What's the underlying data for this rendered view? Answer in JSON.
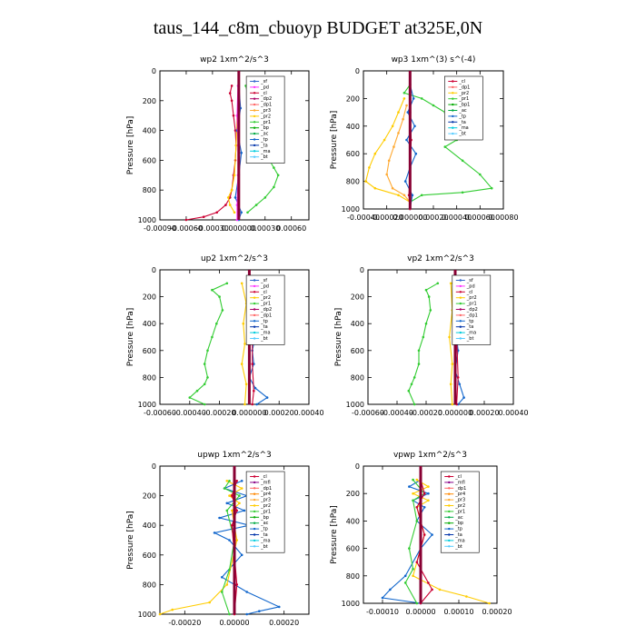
{
  "title": "taus_144_c8m_cbuoyp  BUDGET at325E,0N",
  "colors": {
    "sf": "#3366cc",
    "pd": "#ff33ff",
    "cl": "#cc0033",
    "dp2": "#aa0066",
    "dp1": "#ff6666",
    "pr3": "#ffaa33",
    "pr2": "#ffcc00",
    "pr1": "#33cc33",
    "bp": "#00aa00",
    "ac": "#00aa44",
    "tp": "#1166cc",
    "ta": "#0033aa",
    "ma": "#00ccdd",
    "bt": "#55ccff",
    "mfl": "#880088",
    "pr4": "#ff8800",
    "total": "#880033"
  },
  "chart_data": [
    {
      "type": "line",
      "title": "wp2   1xm^2/s^3",
      "ylabel": "Pressure  [hPa]",
      "ylim": [
        1000,
        0
      ],
      "yticks": [
        0,
        200,
        400,
        600,
        800,
        1000
      ],
      "xlim": [
        -0.0009,
        0.0008
      ],
      "xticks": [
        {
          "v": -0.0009,
          "label": "-0.00090"
        },
        {
          "v": -0.0006,
          "label": "-0.00060"
        },
        {
          "v": -0.0003,
          "label": "-0.00030"
        },
        {
          "v": 0.0,
          "label": "0.000000"
        },
        {
          "v": 0.0003,
          "label": "0.00030"
        },
        {
          "v": 0.0006,
          "label": "0.00060"
        }
      ],
      "legend": [
        "_sf",
        "_pd",
        "_cl",
        "_dp2",
        "_dp1",
        "_pr3",
        "_pr2",
        "_pr1",
        "_bp",
        "_ac",
        "_tp",
        "_ta",
        "_ma",
        "_bt"
      ],
      "series": [
        {
          "key": "pr1",
          "x": [
            8e-05,
            0.00012,
            0.00018,
            0.0002,
            0.00015,
            0.0002,
            0.0003,
            0.00035,
            0.0004,
            0.00045,
            0.0004,
            0.0003,
            0.0002,
            0.0001
          ],
          "y": [
            100,
            200,
            300,
            400,
            450,
            500,
            550,
            600,
            650,
            700,
            780,
            850,
            900,
            950
          ]
        },
        {
          "key": "cl",
          "x": [
            -8e-05,
            -0.0001,
            -8e-05,
            -6e-05,
            -4e-05,
            -3e-05,
            -4e-05,
            -6e-05,
            -8e-05,
            -0.0001,
            -0.00015,
            -0.00025,
            -0.0004,
            -0.0006
          ],
          "y": [
            100,
            150,
            200,
            300,
            400,
            500,
            600,
            700,
            800,
            850,
            900,
            950,
            980,
            1000
          ]
        },
        {
          "key": "pr2",
          "x": [
            0.0,
            -2e-05,
            -3e-05,
            -5e-05,
            -8e-05,
            -0.00012,
            -0.0001,
            -5e-05
          ],
          "y": [
            150,
            300,
            500,
            700,
            800,
            850,
            900,
            950
          ]
        },
        {
          "key": "tp",
          "x": [
            0.0,
            2e-05,
            -2e-05,
            3e-05,
            0.0,
            -4e-05,
            3e-05,
            0.0
          ],
          "y": [
            100,
            250,
            400,
            550,
            700,
            850,
            950,
            1000
          ]
        },
        {
          "key": "pd",
          "x": [
            -1e-05,
            -2e-05,
            -1e-05,
            -1e-05,
            -2e-05,
            -2e-05
          ],
          "y": [
            100,
            300,
            500,
            700,
            900,
            1000
          ]
        }
      ]
    },
    {
      "type": "line",
      "title": "wp3   1xm^(3) s^(-4)",
      "ylabel": "Pressure  [hPa]",
      "ylim": [
        1000,
        0
      ],
      "yticks": [
        0,
        200,
        400,
        600,
        800,
        1000
      ],
      "xlim": [
        -0.0004,
        0.0008
      ],
      "xticks": [
        {
          "v": -0.0004,
          "label": "-0.00040"
        },
        {
          "v": -0.0002,
          "label": "-0.00020"
        },
        {
          "v": 0.0,
          "label": "0.000000"
        },
        {
          "v": 0.0002,
          "label": "0.00020"
        },
        {
          "v": 0.0004,
          "label": "0.00040"
        },
        {
          "v": 0.0006,
          "label": "0.00060"
        },
        {
          "v": 0.0008,
          "label": "0.00080"
        }
      ],
      "legend": [
        "_cl",
        "_dp1",
        "_pr2",
        "_pr1",
        "_bp1",
        "_ac",
        "_tp",
        "_ta",
        "_ma",
        "_bt"
      ],
      "series": [
        {
          "key": "pr1",
          "x": [
            0.0,
            -5e-05,
            0.0001,
            0.0002,
            0.0003,
            0.00045,
            0.0005,
            0.0004,
            0.0003,
            0.00045,
            0.0006,
            0.0007,
            0.00045,
            0.0001,
            0.0
          ],
          "y": [
            100,
            160,
            200,
            250,
            300,
            400,
            450,
            500,
            550,
            650,
            750,
            850,
            880,
            900,
            950
          ]
        },
        {
          "key": "pr2",
          "x": [
            -5e-05,
            -0.0001,
            -0.00015,
            -0.00022,
            -0.0003,
            -0.00035,
            -0.00038,
            -0.0003,
            -0.0001,
            0.0
          ],
          "y": [
            200,
            300,
            400,
            500,
            600,
            700,
            800,
            850,
            900,
            950
          ]
        },
        {
          "key": "pr3",
          "x": [
            -3e-05,
            -6e-05,
            -0.0001,
            -0.00014,
            -0.00018,
            -0.0002,
            -0.00015,
            -5e-05,
            0.0
          ],
          "y": [
            250,
            350,
            450,
            550,
            650,
            750,
            850,
            900,
            950
          ]
        },
        {
          "key": "tp",
          "x": [
            0.0,
            3e-05,
            -2e-05,
            4e-05,
            -3e-05,
            5e-05,
            0.0,
            -4e-05,
            2e-05,
            0.0
          ],
          "y": [
            100,
            200,
            300,
            400,
            500,
            600,
            700,
            800,
            900,
            1000
          ]
        },
        {
          "key": "cl",
          "x": [
            0.0,
            0.0,
            1e-05,
            0.0,
            -1e-05,
            0.0
          ],
          "y": [
            100,
            300,
            500,
            700,
            900,
            1000
          ]
        }
      ]
    },
    {
      "type": "line",
      "title": "up2   1xm^2/s^3",
      "ylabel": "Pressure  [hPa]",
      "ylim": [
        1000,
        0
      ],
      "yticks": [
        0,
        200,
        400,
        600,
        800,
        1000
      ],
      "xlim": [
        -0.0006,
        0.0004
      ],
      "xticks": [
        {
          "v": -0.0006,
          "label": "-0.00060"
        },
        {
          "v": -0.0004,
          "label": "-0.00040"
        },
        {
          "v": -0.0002,
          "label": "-0.00020"
        },
        {
          "v": 0.0,
          "label": "0.000000"
        },
        {
          "v": 0.0002,
          "label": "0.00020"
        },
        {
          "v": 0.0004,
          "label": "0.00040"
        }
      ],
      "legend": [
        "_sf",
        "_pd",
        "_cl",
        "_pr2",
        "_pr1",
        "_dp2",
        "_dp1",
        "_tp",
        "_ta",
        "_ma",
        "_bt"
      ],
      "series": [
        {
          "key": "pr1",
          "x": [
            -0.00015,
            -0.00025,
            -0.0002,
            -0.00018,
            -0.00022,
            -0.00025,
            -0.00028,
            -0.0003,
            -0.00028,
            -0.0003,
            -0.00035,
            -0.0004,
            -0.0003
          ],
          "y": [
            100,
            150,
            200,
            300,
            400,
            500,
            600,
            700,
            800,
            850,
            900,
            950,
            1000
          ]
        },
        {
          "key": "pr2",
          "x": [
            -5e-05,
            -2e-05,
            -4e-05,
            -3e-05,
            -5e-05,
            -2e-05,
            -3e-05
          ],
          "y": [
            100,
            250,
            400,
            550,
            700,
            850,
            1000
          ]
        },
        {
          "key": "tp",
          "x": [
            5e-05,
            0.00012,
            5e-05,
            0.0001,
            3e-05,
            4e-05,
            2e-05,
            3e-05,
            0.0,
            4e-05,
            0.00012,
            5e-05
          ],
          "y": [
            100,
            150,
            200,
            300,
            400,
            500,
            600,
            700,
            800,
            880,
            950,
            1000
          ]
        },
        {
          "key": "cl",
          "x": [
            1e-05,
            1e-05,
            2e-05,
            2e-05,
            3e-05,
            2e-05
          ],
          "y": [
            100,
            300,
            500,
            700,
            900,
            1000
          ]
        }
      ]
    },
    {
      "type": "line",
      "title": "vp2   1xm^2/s^3",
      "ylabel": "Pressure  [hPa]",
      "ylim": [
        1000,
        0
      ],
      "yticks": [
        0,
        200,
        400,
        600,
        800,
        1000
      ],
      "xlim": [
        -0.0006,
        0.0004
      ],
      "xticks": [
        {
          "v": -0.0006,
          "label": "-0.00060"
        },
        {
          "v": -0.0004,
          "label": "-0.00040"
        },
        {
          "v": -0.0002,
          "label": "-0.00020"
        },
        {
          "v": 0.0,
          "label": "0.000000"
        },
        {
          "v": 0.0002,
          "label": "0.00020"
        },
        {
          "v": 0.0004,
          "label": "0.00040"
        }
      ],
      "legend": [
        "_sf",
        "_pd",
        "_cl",
        "_pr2",
        "_pr1",
        "_dp2",
        "_dp1",
        "_tp",
        "_ta",
        "_ma",
        "_bt"
      ],
      "series": [
        {
          "key": "pr1",
          "x": [
            -0.00012,
            -0.0002,
            -0.00018,
            -0.00017,
            -0.0002,
            -0.00022,
            -0.00025,
            -0.00025,
            -0.00028,
            -0.0003,
            -0.00032,
            -0.00028
          ],
          "y": [
            100,
            150,
            200,
            300,
            400,
            500,
            600,
            700,
            800,
            850,
            900,
            1000
          ]
        },
        {
          "key": "pr2",
          "x": [
            -3e-05,
            -2e-05,
            -4e-05,
            -2e-05,
            -3e-05,
            -2e-05
          ],
          "y": [
            100,
            300,
            500,
            700,
            850,
            1000
          ]
        },
        {
          "key": "tp",
          "x": [
            2e-05,
            4e-05,
            2e-05,
            3e-05,
            1e-05,
            2e-05,
            0.0,
            3e-05,
            6e-05,
            2e-05
          ],
          "y": [
            100,
            200,
            300,
            400,
            500,
            600,
            750,
            850,
            950,
            1000
          ]
        },
        {
          "key": "cl",
          "x": [
            1e-05,
            1e-05,
            1e-05,
            2e-05,
            1e-05
          ],
          "y": [
            100,
            300,
            500,
            800,
            1000
          ]
        }
      ]
    },
    {
      "type": "line",
      "title": "upwp   1xm^2/s^3",
      "ylabel": "Pressure  [hPa]",
      "ylim": [
        1000,
        0
      ],
      "yticks": [
        0,
        200,
        400,
        600,
        800,
        1000
      ],
      "xlim": [
        -0.0003,
        0.0003
      ],
      "xticks": [
        {
          "v": -0.0002,
          "label": "-0.00020"
        },
        {
          "v": 0.0,
          "label": "0.00000"
        },
        {
          "v": 0.0002,
          "label": "0.00020"
        }
      ],
      "legend": [
        "_cl",
        "_mfl",
        "_dp1",
        "_pr4",
        "_pr3",
        "_pr2",
        "_pr1",
        "_bp",
        "_ac",
        "_tp",
        "_ta",
        "_ma",
        "_bt"
      ],
      "series": [
        {
          "key": "tp",
          "x": [
            3e-05,
            -4e-05,
            5e-05,
            -3e-05,
            4e-05,
            -6e-05,
            6e-05,
            -8e-05,
            -2e-05,
            3e-05,
            -5e-05,
            5e-05,
            0.00018,
            0.0001,
            5e-05
          ],
          "y": [
            100,
            150,
            200,
            250,
            300,
            350,
            400,
            450,
            500,
            600,
            750,
            850,
            950,
            980,
            1000
          ]
        },
        {
          "key": "pr2",
          "x": [
            -3e-05,
            3e-05,
            -2e-05,
            2e-05,
            -1e-05,
            1e-05,
            -3e-05,
            -0.0001,
            -0.00025,
            -0.0003
          ],
          "y": [
            100,
            150,
            200,
            250,
            300,
            500,
            800,
            920,
            970,
            1000
          ]
        },
        {
          "key": "pr1",
          "x": [
            -2e-05,
            -4e-05,
            2e-05,
            -3e-05,
            0.0,
            -2e-05,
            -5e-05,
            -2e-05
          ],
          "y": [
            100,
            150,
            200,
            300,
            500,
            700,
            850,
            1000
          ]
        },
        {
          "key": "cl",
          "x": [
            1e-05,
            -1e-05,
            1e-05,
            -1e-05,
            0.0,
            1e-05,
            0.0
          ],
          "y": [
            100,
            200,
            300,
            400,
            600,
            800,
            1000
          ]
        }
      ]
    },
    {
      "type": "line",
      "title": "vpwp   1xm^2/s^3",
      "ylabel": "Pressure  [hPa]",
      "ylim": [
        1000,
        0
      ],
      "yticks": [
        0,
        200,
        400,
        600,
        800,
        1000
      ],
      "xlim": [
        -0.00015,
        0.0002
      ],
      "xticks": [
        {
          "v": -0.0001,
          "label": "-0.00010"
        },
        {
          "v": 0.0,
          "label": "0.00000"
        },
        {
          "v": 0.0001,
          "label": "0.00010"
        },
        {
          "v": 0.0002,
          "label": "0.00020"
        }
      ],
      "legend": [
        "_cl",
        "_mfl",
        "_dp1",
        "_pr4",
        "_pr3",
        "_pr2",
        "_pr1",
        "_ac",
        "_bp",
        "_tp",
        "_ta",
        "_ma",
        "_bt"
      ],
      "series": [
        {
          "key": "tp",
          "x": [
            0.0,
            -3e-05,
            2e-05,
            -2e-05,
            1e-05,
            -1e-05,
            3e-05,
            0.0,
            -4e-05,
            -8e-05,
            -0.0001,
            0.0
          ],
          "y": [
            100,
            150,
            200,
            250,
            300,
            400,
            500,
            600,
            800,
            900,
            960,
            1000
          ]
        },
        {
          "key": "pr2",
          "x": [
            -1e-05,
            2e-05,
            -2e-05,
            2e-05,
            -1e-05,
            1e-05,
            -2e-05,
            5e-05,
            0.00012,
            0.00018
          ],
          "y": [
            100,
            150,
            200,
            250,
            300,
            500,
            800,
            900,
            950,
            1000
          ]
        },
        {
          "key": "pr1",
          "x": [
            -2e-05,
            1e-05,
            -2e-05,
            -1e-05,
            -3e-05,
            -2e-05,
            -4e-05,
            -1e-05
          ],
          "y": [
            100,
            200,
            250,
            400,
            600,
            750,
            850,
            1000
          ]
        },
        {
          "key": "cl",
          "x": [
            0.0,
            1e-05,
            -1e-05,
            1e-05,
            -1e-05,
            2e-05,
            3e-05,
            0.0
          ],
          "y": [
            100,
            200,
            300,
            500,
            700,
            850,
            900,
            1000
          ]
        }
      ]
    }
  ]
}
